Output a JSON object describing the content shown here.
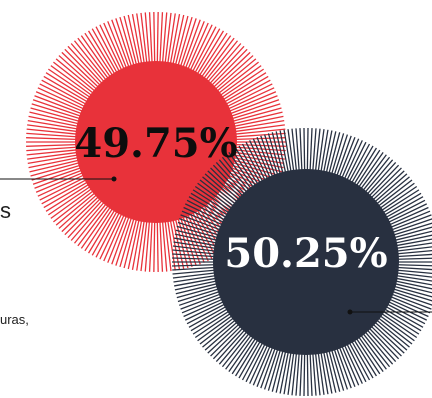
{
  "chart_data": {
    "type": "pie",
    "chart_style": "proportional circles with radial starburst",
    "slices": [
      {
        "value": 49.75,
        "label": "49.75%",
        "color": "#e8323a"
      },
      {
        "value": 50.25,
        "label": "50.25%",
        "color": "#283040"
      }
    ]
  },
  "text_fragments": {
    "fragment_1": "s",
    "fragment_2": "uras,"
  },
  "colors": {
    "red": "#e8323a",
    "navy": "#283040",
    "leader_line": "#111111",
    "label_light": "#ffffff",
    "label_dark": "#0d0d0d"
  }
}
